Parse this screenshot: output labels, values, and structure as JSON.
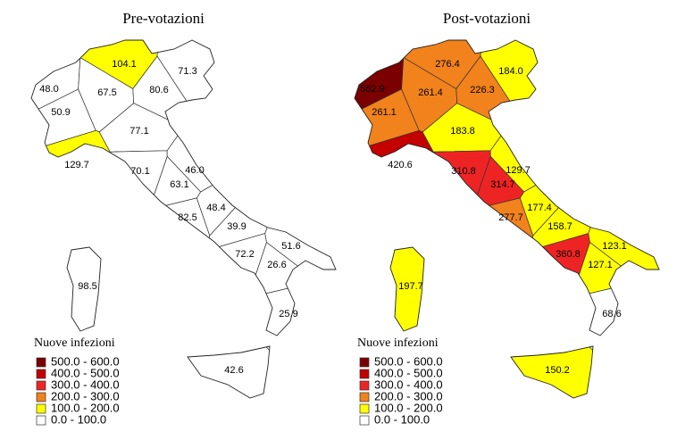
{
  "maps": [
    {
      "title": "Pre-votazioni",
      "regions": [
        {
          "label": "48.0"
        },
        {
          "label": "50.9"
        },
        {
          "label": "67.5"
        },
        {
          "label": "104.1"
        },
        {
          "label": "71.3"
        },
        {
          "label": "80.6"
        },
        {
          "label": "129.7"
        },
        {
          "label": "77.1"
        },
        {
          "label": "70.1"
        },
        {
          "label": "46.0"
        },
        {
          "label": "63.1"
        },
        {
          "label": "82.5"
        },
        {
          "label": "48.4"
        },
        {
          "label": "39.9"
        },
        {
          "label": "72.2"
        },
        {
          "label": "51.6"
        },
        {
          "label": "26.6"
        },
        {
          "label": "25.9"
        },
        {
          "label": "42.6"
        },
        {
          "label": "98.5"
        }
      ],
      "legend": {
        "title": "Nuove infezioni",
        "classes": [
          {
            "label": "500.0 - 600.0",
            "color": "#7b0000"
          },
          {
            "label": "400.0 - 500.0",
            "color": "#c40000"
          },
          {
            "label": "300.0 - 400.0",
            "color": "#ee2424"
          },
          {
            "label": "200.0 - 300.0",
            "color": "#f2821c"
          },
          {
            "label": "100.0 - 200.0",
            "color": "#ffff00"
          },
          {
            "label": "0.0 - 100.0",
            "color": "#ffffff"
          }
        ]
      }
    },
    {
      "title": "Post-votazioni",
      "regions": [
        {
          "label": "552.9"
        },
        {
          "label": "261.1"
        },
        {
          "label": "261.4"
        },
        {
          "label": "276.4"
        },
        {
          "label": "184.0"
        },
        {
          "label": "226.3"
        },
        {
          "label": "420.6"
        },
        {
          "label": "183.8"
        },
        {
          "label": "310.8"
        },
        {
          "label": "129.7"
        },
        {
          "label": "314.7"
        },
        {
          "label": "277.7"
        },
        {
          "label": "177.4"
        },
        {
          "label": "158.7"
        },
        {
          "label": "360.8"
        },
        {
          "label": "123.1"
        },
        {
          "label": "127.1"
        },
        {
          "label": "68.6"
        },
        {
          "label": "150.2"
        },
        {
          "label": "197.7"
        }
      ],
      "legend": {
        "title": "Nuove infezioni",
        "classes": [
          {
            "label": "500.0 - 600.0",
            "color": "#7b0000"
          },
          {
            "label": "400.0 - 500.0",
            "color": "#c40000"
          },
          {
            "label": "300.0 - 400.0",
            "color": "#ee2424"
          },
          {
            "label": "200.0 - 300.0",
            "color": "#f2821c"
          },
          {
            "label": "100.0 - 200.0",
            "color": "#ffff00"
          },
          {
            "label": "0.0 - 100.0",
            "color": "#ffffff"
          }
        ]
      }
    }
  ]
}
